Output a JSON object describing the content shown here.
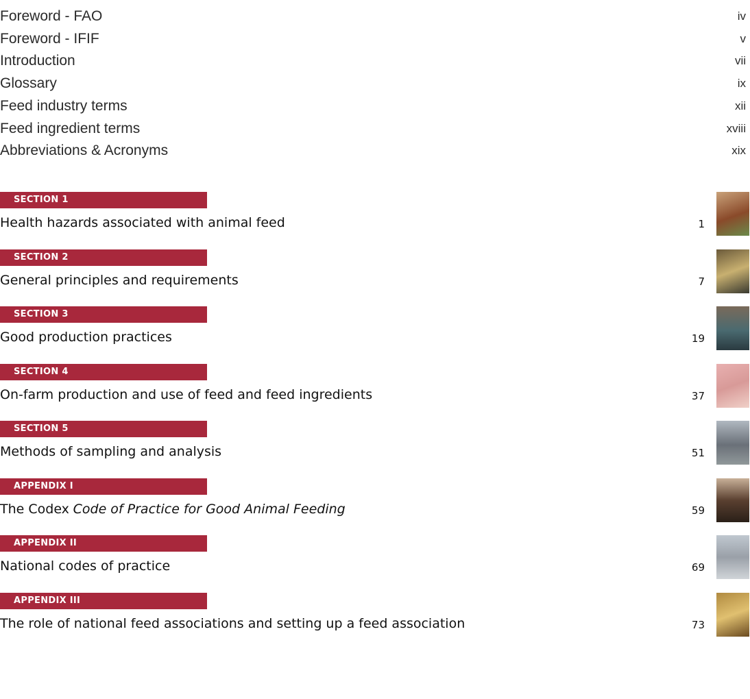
{
  "front_matter": [
    {
      "title": "Foreword - FAO",
      "page": "iv"
    },
    {
      "title": "Foreword - IFIF",
      "page": "v"
    },
    {
      "title": "Introduction",
      "page": "vii"
    },
    {
      "title": "Glossary",
      "page": "ix"
    },
    {
      "title": "Feed industry terms",
      "page": "xii"
    },
    {
      "title": "Feed ingredient terms",
      "page": "xviii"
    },
    {
      "title": "Abbreviations & Acronyms",
      "page": "xix"
    }
  ],
  "sections": [
    {
      "label": "SECTION 1",
      "title": "Health hazards associated with animal feed",
      "page": "1"
    },
    {
      "label": "SECTION 2",
      "title": "General principles and requirements",
      "page": "7"
    },
    {
      "label": "SECTION 3",
      "title": "Good production practices",
      "page": "19"
    },
    {
      "label": "SECTION 4",
      "title": "On-farm production and use of feed and feed ingredients",
      "page": "37"
    },
    {
      "label": "SECTION 5",
      "title": "Methods of sampling and analysis",
      "page": "51"
    },
    {
      "label": "APPENDIX I",
      "title": "The Codex",
      "title_italic": "Code of Practice for Good Animal Feeding",
      "page": "59"
    },
    {
      "label": "APPENDIX II",
      "title": "National codes of practice",
      "page": "69"
    },
    {
      "label": "APPENDIX III",
      "title": "The role of national feed associations and setting up a feed association",
      "page": "73"
    }
  ]
}
